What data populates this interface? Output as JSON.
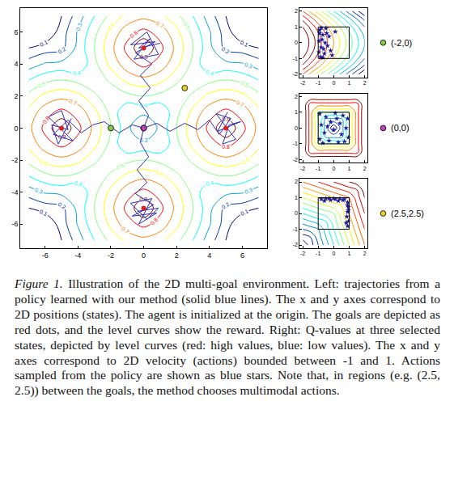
{
  "chart_data": [
    {
      "type": "contour",
      "x": [
        -7,
        -6,
        -5,
        -4,
        -3,
        -2,
        -1,
        0,
        1,
        2,
        3,
        4,
        5,
        6,
        7
      ],
      "y": [
        -7,
        -6,
        -5,
        -4,
        -3,
        -2,
        -1,
        0,
        1,
        2,
        3,
        4,
        5,
        6,
        7
      ],
      "z": [
        [
          0,
          0,
          0.1,
          0.25,
          0.4,
          0.53,
          0.63,
          0.67,
          0.63,
          0.53,
          0.4,
          0.25,
          0.1,
          0,
          0
        ],
        [
          0,
          0,
          0.15,
          0.31,
          0.47,
          0.63,
          0.76,
          0.83,
          0.76,
          0.63,
          0.47,
          0.31,
          0.15,
          0,
          0
        ],
        [
          0.1,
          0.15,
          0.17,
          0.33,
          0.5,
          0.67,
          0.83,
          1,
          0.83,
          0.67,
          0.5,
          0.33,
          0.17,
          0.15,
          0.1
        ],
        [
          0.25,
          0.31,
          0.33,
          0.31,
          0.47,
          0.63,
          0.76,
          0.83,
          0.76,
          0.63,
          0.47,
          0.31,
          0.33,
          0.31,
          0.25
        ],
        [
          0.4,
          0.47,
          0.5,
          0.47,
          0.4,
          0.53,
          0.63,
          0.67,
          0.63,
          0.53,
          0.4,
          0.47,
          0.5,
          0.47,
          0.4
        ],
        [
          0.53,
          0.63,
          0.67,
          0.63,
          0.53,
          0.4,
          0.47,
          0.5,
          0.47,
          0.4,
          0.53,
          0.63,
          0.67,
          0.63,
          0.53
        ],
        [
          0.63,
          0.76,
          0.83,
          0.76,
          0.63,
          0.47,
          0.31,
          0.33,
          0.31,
          0.47,
          0.63,
          0.76,
          0.83,
          0.76,
          0.63
        ],
        [
          0.67,
          0.83,
          1,
          0.83,
          0.67,
          0.5,
          0.33,
          0.17,
          0.33,
          0.5,
          0.67,
          0.83,
          1,
          0.83,
          0.67
        ],
        [
          0.63,
          0.76,
          0.83,
          0.76,
          0.63,
          0.47,
          0.31,
          0.33,
          0.31,
          0.47,
          0.63,
          0.76,
          0.83,
          0.76,
          0.63
        ],
        [
          0.53,
          0.63,
          0.67,
          0.63,
          0.53,
          0.4,
          0.47,
          0.5,
          0.47,
          0.4,
          0.53,
          0.63,
          0.67,
          0.63,
          0.53
        ],
        [
          0.4,
          0.47,
          0.5,
          0.47,
          0.4,
          0.53,
          0.63,
          0.67,
          0.63,
          0.53,
          0.4,
          0.47,
          0.5,
          0.47,
          0.4
        ],
        [
          0.25,
          0.31,
          0.33,
          0.31,
          0.47,
          0.63,
          0.76,
          0.83,
          0.76,
          0.63,
          0.47,
          0.31,
          0.33,
          0.31,
          0.25
        ],
        [
          0.1,
          0.15,
          0.17,
          0.33,
          0.5,
          0.67,
          0.83,
          1,
          0.83,
          0.67,
          0.5,
          0.33,
          0.17,
          0.15,
          0.1
        ],
        [
          0,
          0,
          0.15,
          0.31,
          0.47,
          0.63,
          0.76,
          0.83,
          0.76,
          0.63,
          0.47,
          0.31,
          0.15,
          0,
          0
        ],
        [
          0,
          0,
          0.1,
          0.25,
          0.4,
          0.53,
          0.63,
          0.67,
          0.63,
          0.53,
          0.4,
          0.25,
          0.1,
          0,
          0
        ]
      ],
      "contour_levels": [
        0.1,
        0.2,
        0.3,
        0.4,
        0.5,
        0.6,
        0.7,
        0.8,
        0.9
      ],
      "data_labels": true,
      "xlim": [
        -7.5,
        7.5
      ],
      "ylim": [
        -7.5,
        7.5
      ],
      "xticks": [
        -6,
        -4,
        -2,
        0,
        2,
        4,
        6
      ],
      "yticks": [
        -6,
        -4,
        -2,
        0,
        2,
        4,
        6
      ],
      "grid": false,
      "goals": {
        "x": [
          5,
          -5,
          0,
          0
        ],
        "y": [
          0,
          0,
          5,
          -5
        ],
        "color": "#e0201b",
        "marker": "circle"
      },
      "trajectories": [
        {
          "color": "#2b2bb8",
          "line_style": "solid",
          "x": [
            0,
            0.8,
            1.6,
            2.5,
            3.3,
            4.0,
            4.6,
            5.3,
            4.4,
            5.6,
            4.8,
            5.2,
            5.9,
            4.5,
            5.1
          ],
          "y": [
            0,
            0.3,
            -0.2,
            0.3,
            -0.1,
            0.5,
            -0.4,
            0.6,
            0.9,
            -0.7,
            -1.0,
            0.2,
            0.4,
            -0.2,
            1.0
          ]
        },
        {
          "color": "#2b2bb8",
          "line_style": "solid",
          "x": [
            0,
            -0.7,
            -1.5,
            -2.4,
            -3.1,
            -3.8,
            -4.6,
            -5.5,
            -4.3,
            -5.8,
            -5.0,
            -4.6,
            -5.6,
            -5.2,
            -4.4
          ],
          "y": [
            0,
            0.2,
            -0.3,
            0.4,
            0.2,
            -0.3,
            0.5,
            -0.4,
            -0.8,
            0.7,
            1.1,
            -0.1,
            0.2,
            -1.0,
            0.6
          ]
        },
        {
          "color": "#2b2bb8",
          "line_style": "solid",
          "x": [
            0,
            0.3,
            -0.3,
            0.4,
            -0.2,
            0.5,
            -0.5,
            0.7,
            -0.8,
            0.2,
            0.9,
            -0.6,
            0.4,
            -0.3,
            1.0
          ],
          "y": [
            0,
            0.8,
            1.7,
            2.5,
            3.3,
            4.0,
            4.7,
            5.4,
            5.2,
            6.0,
            4.6,
            4.3,
            5.6,
            5.0,
            5.3
          ]
        },
        {
          "color": "#2b2bb8",
          "line_style": "solid",
          "x": [
            0,
            -0.2,
            0.3,
            -0.4,
            0.2,
            -0.5,
            0.6,
            -0.7,
            0.8,
            -0.3,
            0.5,
            -0.8,
            0.2,
            0.9,
            -0.4
          ],
          "y": [
            0,
            -0.9,
            -1.8,
            -2.6,
            -3.4,
            -4.1,
            -4.8,
            -5.5,
            -5.3,
            -6.0,
            -4.4,
            -4.7,
            -5.7,
            -5.0,
            -5.2
          ]
        }
      ]
    },
    {
      "type": "contour",
      "x": [
        -2,
        -1.5,
        -1,
        -0.5,
        0,
        0.5,
        1,
        1.5,
        2
      ],
      "y": [
        -2,
        -1.5,
        -1,
        -0.5,
        0,
        0.5,
        1,
        1.5,
        2
      ],
      "z": [
        [
          0.2,
          -0.05,
          -0.3,
          -0.55,
          -0.8,
          -1.05,
          -1.3,
          -1.55,
          -1.8
        ],
        [
          0.55,
          0.3,
          0.05,
          -0.2,
          -0.45,
          -0.7,
          -0.95,
          -1.2,
          -1.45
        ],
        [
          0.8,
          0.55,
          0.3,
          0.05,
          -0.2,
          -0.45,
          -0.7,
          -0.95,
          -1.2
        ],
        [
          0.95,
          0.7,
          0.45,
          0.2,
          -0.05,
          -0.3,
          -0.55,
          -0.8,
          -1.05
        ],
        [
          1,
          0.75,
          0.5,
          0.25,
          0,
          -0.25,
          -0.5,
          -0.75,
          -1
        ],
        [
          0.95,
          0.7,
          0.45,
          0.2,
          -0.05,
          -0.3,
          -0.55,
          -0.8,
          -1.05
        ],
        [
          0.8,
          0.55,
          0.3,
          0.05,
          -0.2,
          -0.45,
          -0.7,
          -0.95,
          -1.2
        ],
        [
          0.55,
          0.3,
          0.05,
          -0.2,
          -0.45,
          -0.7,
          -0.95,
          -1.2,
          -1.45
        ],
        [
          0.2,
          -0.05,
          -0.3,
          -0.55,
          -0.8,
          -1.05,
          -1.3,
          -1.55,
          -1.8
        ]
      ],
      "contour_levels": [
        -1.6,
        -1.4,
        -1.2,
        -1,
        -0.8,
        -0.6,
        -0.4,
        -0.2,
        0,
        0.2,
        0.4,
        0.6,
        0.8
      ],
      "data_labels": false,
      "xlim": [
        -2.2,
        2.2
      ],
      "ylim": [
        -2.2,
        2.2
      ],
      "xticks": [
        -2,
        -1,
        0,
        1,
        2
      ],
      "yticks": [
        -2,
        -1,
        0,
        1,
        2
      ],
      "grid": false,
      "action_bounds": [
        -1,
        1
      ],
      "actions": {
        "color": "#1a1a9e",
        "marker": "star",
        "x": [
          -0.9,
          -0.7,
          -0.8,
          -0.5,
          -0.95,
          -0.6,
          -0.3,
          -0.85,
          -0.4,
          -0.75,
          -0.2,
          -0.9,
          -0.55,
          -0.65,
          0.1,
          -0.8,
          -0.45,
          -0.1,
          -0.7,
          -0.95
        ],
        "y": [
          0.8,
          0.5,
          -0.3,
          0.9,
          0.1,
          -0.7,
          0.4,
          -0.9,
          -0.2,
          0.2,
          -0.5,
          0.6,
          0.0,
          -0.4,
          0.7,
          0.95,
          0.6,
          -0.8,
          -0.95,
          -0.6
        ]
      }
    },
    {
      "type": "contour",
      "x": [
        -2,
        -1.5,
        -1,
        -0.5,
        0,
        0.5,
        1,
        1.5,
        2
      ],
      "y": [
        -2,
        -1.5,
        -1,
        -0.5,
        0,
        0.5,
        1,
        1.5,
        2
      ],
      "z": [
        [
          1,
          1,
          1,
          1,
          1,
          1,
          1,
          1,
          1
        ],
        [
          1,
          0.75,
          0.75,
          0.75,
          0.75,
          0.75,
          0.75,
          0.75,
          1
        ],
        [
          1,
          0.75,
          0.5,
          0.5,
          0.5,
          0.5,
          0.5,
          0.75,
          1
        ],
        [
          1,
          0.75,
          0.5,
          0.25,
          0.25,
          0.25,
          0.5,
          0.75,
          1
        ],
        [
          1,
          0.75,
          0.5,
          0.25,
          0,
          0.25,
          0.5,
          0.75,
          1
        ],
        [
          1,
          0.75,
          0.5,
          0.25,
          0.25,
          0.25,
          0.5,
          0.75,
          1
        ],
        [
          1,
          0.75,
          0.5,
          0.5,
          0.5,
          0.5,
          0.5,
          0.75,
          1
        ],
        [
          1,
          0.75,
          0.75,
          0.75,
          0.75,
          0.75,
          0.75,
          0.75,
          1
        ],
        [
          1,
          1,
          1,
          1,
          1,
          1,
          1,
          1,
          1
        ]
      ],
      "contour_levels": [
        0.1,
        0.2,
        0.3,
        0.4,
        0.5,
        0.6,
        0.7,
        0.8,
        0.9
      ],
      "data_labels": false,
      "xlim": [
        -2.2,
        2.2
      ],
      "ylim": [
        -2.2,
        2.2
      ],
      "xticks": [
        -2,
        -1,
        0,
        1,
        2
      ],
      "yticks": [
        -2,
        -1,
        0,
        1,
        2
      ],
      "grid": false,
      "action_bounds": [
        -1,
        1
      ],
      "actions": {
        "color": "#1a1a9e",
        "marker": "star",
        "x": [
          -0.9,
          -0.5,
          0.1,
          0.6,
          0.9,
          -0.8,
          -0.2,
          0.4,
          0.8,
          -0.6,
          0.0,
          0.5,
          -0.9,
          -0.3,
          0.3,
          0.95,
          -0.7,
          0.2,
          0.7,
          -0.4
        ],
        "y": [
          0.9,
          0.7,
          0.95,
          0.8,
          0.6,
          0.2,
          0.4,
          0.3,
          0.0,
          -0.3,
          -0.1,
          -0.4,
          -0.7,
          -0.8,
          -0.9,
          -0.6,
          -0.95,
          0.6,
          -0.85,
          0.1
        ]
      }
    },
    {
      "type": "contour",
      "x": [
        -2,
        -1.5,
        -1,
        -0.5,
        0,
        0.5,
        1,
        1.5,
        2
      ],
      "y": [
        -2,
        -1.5,
        -1,
        -0.5,
        0,
        0.5,
        1,
        1.5,
        2
      ],
      "z": [
        [
          -2,
          -1.625,
          -1.25,
          -0.875,
          -0.5,
          -0.125,
          0.25,
          0.625,
          1
        ],
        [
          -1.625,
          -1.5,
          -1.125,
          -0.75,
          -0.375,
          0,
          0.375,
          0.75,
          1.125
        ],
        [
          -1.25,
          -1.125,
          -1,
          -0.625,
          -0.25,
          0.125,
          0.5,
          0.875,
          1.25
        ],
        [
          -0.875,
          -0.75,
          -0.625,
          -0.5,
          -0.125,
          0.25,
          0.625,
          1,
          1.375
        ],
        [
          -0.5,
          -0.375,
          -0.25,
          -0.125,
          0,
          0.375,
          0.75,
          1.125,
          1.5
        ],
        [
          -0.125,
          0,
          0.125,
          0.25,
          0.375,
          0.5,
          0.875,
          1.25,
          1.625
        ],
        [
          0.25,
          0.375,
          0.5,
          0.625,
          0.75,
          0.875,
          1,
          1.375,
          1.75
        ],
        [
          0.625,
          0.75,
          0.875,
          1,
          1.125,
          1.25,
          1.375,
          1.5,
          1.875
        ],
        [
          1,
          1.125,
          1.25,
          1.375,
          1.5,
          1.625,
          1.75,
          1.875,
          2
        ]
      ],
      "contour_levels": [
        -1.75,
        -1.5,
        -1.25,
        -1,
        -0.75,
        -0.5,
        -0.25,
        0,
        0.25,
        0.5,
        0.75,
        1,
        1.25,
        1.5,
        1.75
      ],
      "data_labels": false,
      "xlim": [
        -2.2,
        2.2
      ],
      "ylim": [
        -2.2,
        2.2
      ],
      "xticks": [
        -2,
        -1,
        0,
        1,
        2
      ],
      "yticks": [
        -2,
        -1,
        0,
        1,
        2
      ],
      "grid": false,
      "action_bounds": [
        -1,
        1
      ],
      "actions": {
        "color": "#1a1a9e",
        "marker": "star",
        "x": [
          -0.8,
          -0.5,
          -0.2,
          0.1,
          0.4,
          0.7,
          0.9,
          0.95,
          0.9,
          0.85,
          0.95,
          0.9,
          -0.6,
          0.3,
          0.6,
          0.95,
          0.8,
          0.9,
          -0.3,
          0.0
        ],
        "y": [
          0.9,
          0.95,
          0.85,
          0.9,
          0.95,
          0.9,
          0.7,
          0.4,
          0.1,
          -0.2,
          -0.5,
          -0.8,
          0.8,
          0.8,
          0.85,
          0.2,
          -0.6,
          0.5,
          0.95,
          0.95
        ]
      }
    }
  ],
  "selected_states": [
    {
      "label": "(-2,0)",
      "x": -2,
      "y": 0,
      "color": "#86c94a"
    },
    {
      "label": "(0,0)",
      "x": 0,
      "y": 0,
      "color": "#c43fb6"
    },
    {
      "label": "(2.5,2.5)",
      "x": 2.5,
      "y": 2.5,
      "color": "#e3d12c"
    }
  ],
  "caption": {
    "label": "Figure 1.",
    "text": "Illustration of the 2D multi-goal environment. Left: trajectories from a policy learned with our method (solid blue lines). The x and y axes correspond to 2D positions (states). The agent is initialized at the origin. The goals are depicted as red dots, and the level curves show the reward. Right: Q-values at three selected states, depicted by level curves (red: high values, blue: low values). The x and y axes correspond to 2D velocity (actions) bounded between -1 and 1. Actions sampled from the policy are shown as blue stars. Note that, in regions (e.g. (2.5, 2.5)) between the goals, the method chooses multimodal actions."
  }
}
